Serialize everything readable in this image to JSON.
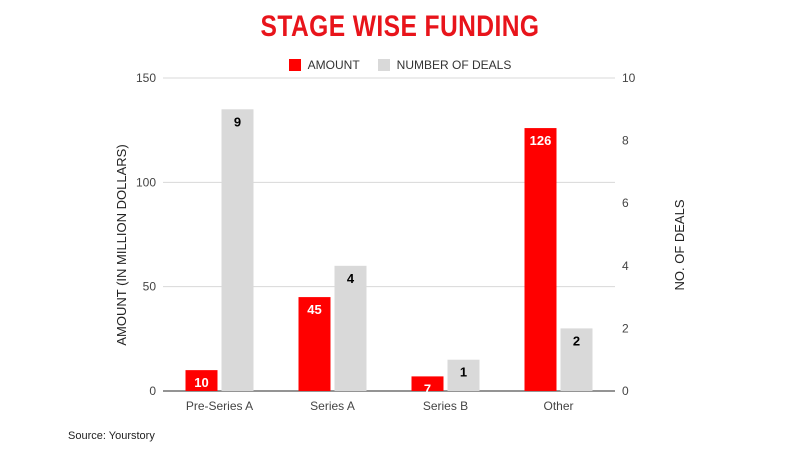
{
  "chart_data": {
    "type": "bar",
    "title": "STAGE WISE FUNDING",
    "categories": [
      "Pre-Series A",
      "Series A",
      "Series B",
      "Other"
    ],
    "series": [
      {
        "name": "AMOUNT",
        "values": [
          10,
          45,
          7,
          126
        ],
        "color": "#ff0000",
        "label_color": "#ffffff",
        "axis": "left"
      },
      {
        "name": "NUMBER OF DEALS",
        "values": [
          9,
          4,
          1,
          2
        ],
        "color": "#d9d9d9",
        "label_color": "#000000",
        "axis": "right"
      }
    ],
    "ylabel": "AMOUNT (IN MILLION DOLLARS)",
    "ylabel_right": "NO. OF DEALS",
    "ylim": [
      0,
      150
    ],
    "ylim_right": [
      0,
      10
    ],
    "yticks": [
      "0",
      "50",
      "100",
      "150"
    ],
    "yticks_right": [
      "0",
      "2",
      "4",
      "6",
      "8",
      "10"
    ],
    "grid": true,
    "legend_position": "top"
  },
  "source": "Source: Yourstory"
}
